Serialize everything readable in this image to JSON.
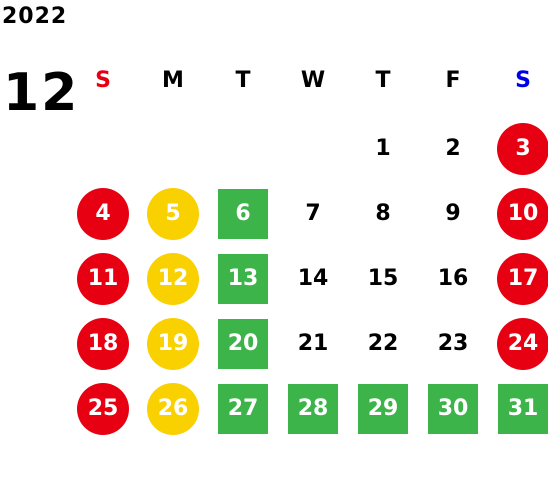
{
  "header": {
    "year": "2022",
    "month": "12"
  },
  "weekdays": [
    "S",
    "M",
    "T",
    "W",
    "T",
    "F",
    "S"
  ],
  "colors": {
    "sunday_text": "#e60012",
    "saturday_text": "#0000e6",
    "red_circle": "#e60012",
    "yellow_circle": "#f9d000",
    "green_square": "#3cb44a"
  },
  "weeks": [
    [
      null,
      null,
      null,
      null,
      {
        "day": "1",
        "style": "plain"
      },
      {
        "day": "2",
        "style": "plain"
      },
      {
        "day": "3",
        "style": "red"
      }
    ],
    [
      {
        "day": "4",
        "style": "red"
      },
      {
        "day": "5",
        "style": "yellow"
      },
      {
        "day": "6",
        "style": "green"
      },
      {
        "day": "7",
        "style": "plain"
      },
      {
        "day": "8",
        "style": "plain"
      },
      {
        "day": "9",
        "style": "plain"
      },
      {
        "day": "10",
        "style": "red"
      }
    ],
    [
      {
        "day": "11",
        "style": "red"
      },
      {
        "day": "12",
        "style": "yellow"
      },
      {
        "day": "13",
        "style": "green"
      },
      {
        "day": "14",
        "style": "plain"
      },
      {
        "day": "15",
        "style": "plain"
      },
      {
        "day": "16",
        "style": "plain"
      },
      {
        "day": "17",
        "style": "red"
      }
    ],
    [
      {
        "day": "18",
        "style": "red"
      },
      {
        "day": "19",
        "style": "yellow"
      },
      {
        "day": "20",
        "style": "green"
      },
      {
        "day": "21",
        "style": "plain"
      },
      {
        "day": "22",
        "style": "plain"
      },
      {
        "day": "23",
        "style": "plain"
      },
      {
        "day": "24",
        "style": "red"
      }
    ],
    [
      {
        "day": "25",
        "style": "red"
      },
      {
        "day": "26",
        "style": "yellow"
      },
      {
        "day": "27",
        "style": "green"
      },
      {
        "day": "28",
        "style": "green"
      },
      {
        "day": "29",
        "style": "green"
      },
      {
        "day": "30",
        "style": "green"
      },
      {
        "day": "31",
        "style": "green"
      }
    ]
  ]
}
